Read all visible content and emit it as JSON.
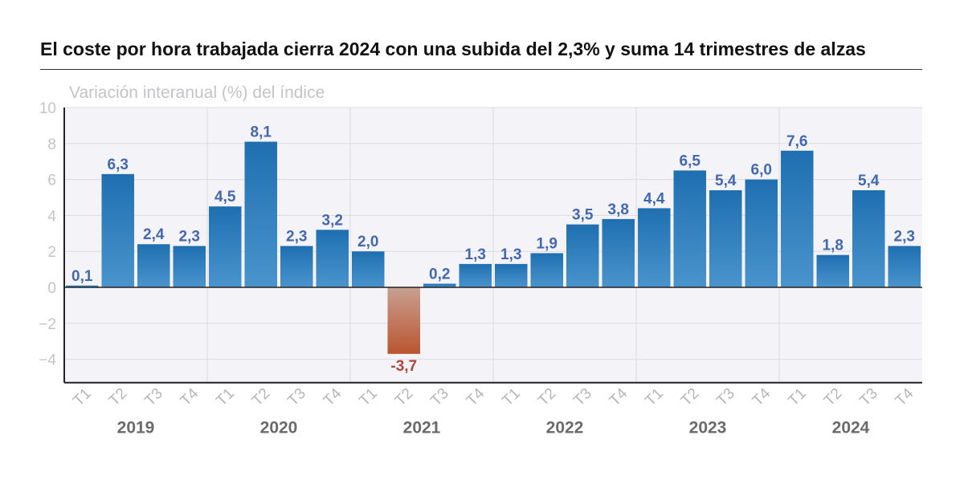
{
  "title": "El coste por hora trabajada cierra 2024 con una subida del 2,3% y suma 14 trimestres de alzas",
  "subtitle": "Variación interanual (%) del índice",
  "colors": {
    "positive_top": "#1f6fb0",
    "positive_bottom": "#4a94cd",
    "negative_top": "#c9a092",
    "negative_bottom": "#b9552f",
    "positive_label": "#4468b0",
    "negative_label": "#b0473a",
    "plot_bg": "#f4f3f7"
  },
  "chart_data": {
    "type": "bar",
    "title": "El coste por hora trabajada cierra 2024 con una subida del 2,3% y suma 14 trimestres de alzas",
    "subtitle": "Variación interanual (%) del índice",
    "ylim": [
      -5.3,
      10
    ],
    "yticks": [
      10,
      8,
      6,
      4,
      2,
      0,
      -2,
      -4
    ],
    "ytick_labels": [
      "10",
      "8",
      "6",
      "4",
      "2",
      "0",
      "−2",
      "−4"
    ],
    "grid": true,
    "categories": [
      "T1",
      "T2",
      "T3",
      "T4",
      "T1",
      "T2",
      "T3",
      "T4",
      "T1",
      "T2",
      "T3",
      "T4",
      "T1",
      "T2",
      "T3",
      "T4",
      "T1",
      "T2",
      "T3",
      "T4",
      "T1",
      "T2",
      "T3",
      "T4"
    ],
    "years": [
      "2019",
      "2020",
      "2021",
      "2022",
      "2023",
      "2024"
    ],
    "values": [
      0.1,
      6.3,
      2.4,
      2.3,
      4.5,
      8.1,
      2.3,
      3.2,
      2.0,
      -3.7,
      0.2,
      1.3,
      1.3,
      1.9,
      3.5,
      3.8,
      4.4,
      6.5,
      5.4,
      6.0,
      7.6,
      1.8,
      5.4,
      2.3
    ],
    "value_labels": [
      "0,1",
      "6,3",
      "2,4",
      "2,3",
      "4,5",
      "8,1",
      "2,3",
      "3,2",
      "2,0",
      "-3,7",
      "0,2",
      "1,3",
      "1,3",
      "1,9",
      "3,5",
      "3,8",
      "4,4",
      "6,5",
      "5,4",
      "6,0",
      "7,6",
      "1,8",
      "5,4",
      "2,3"
    ]
  }
}
